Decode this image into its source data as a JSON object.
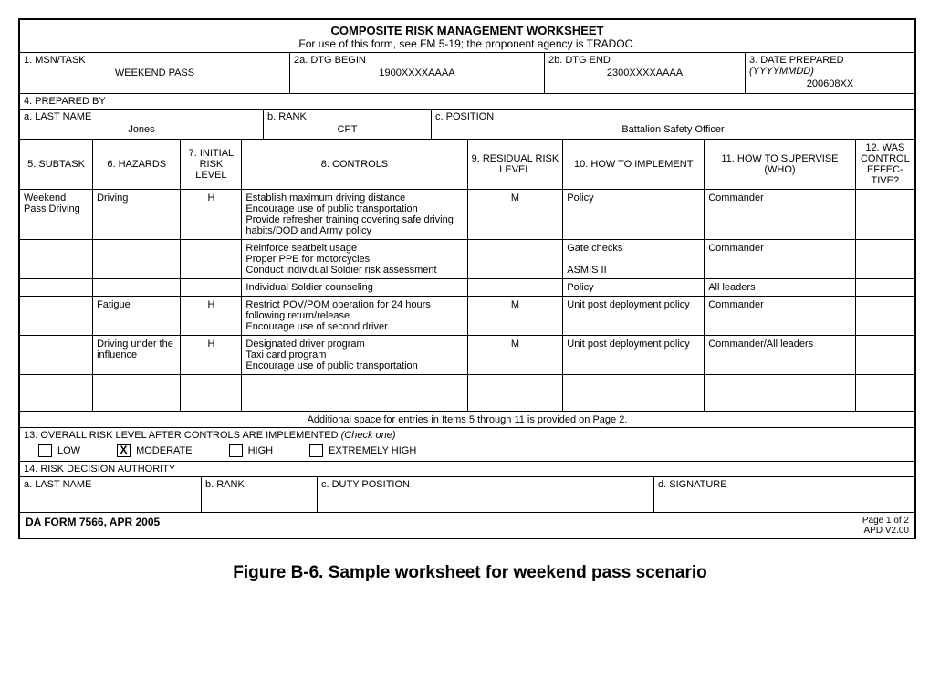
{
  "header": {
    "title": "COMPOSITE RISK MANAGEMENT WORKSHEET",
    "subtitle": "For use of this form, see FM 5-19; the proponent agency is TRADOC."
  },
  "belt1": {
    "msn_label": "1. MSN/TASK",
    "msn_value": "WEEKEND PASS",
    "dtg_begin_label": "2a. DTG BEGIN",
    "dtg_begin_value": "1900XXXXAAAA",
    "dtg_end_label": "2b. DTG END",
    "dtg_end_value": "2300XXXXAAAA",
    "date_label": "3. DATE PREPARED (YYYYMMDD)",
    "date_label_prefix": "3. DATE PREPARED ",
    "date_label_italic": "(YYYYMMDD)",
    "date_value": "200608XX"
  },
  "prepared_by": "4. PREPARED BY",
  "belt2": {
    "ln_label": "a. LAST NAME",
    "ln_value": "Jones",
    "rank_label": "b. RANK",
    "rank_value": "CPT",
    "pos_label": "c. POSITION",
    "pos_value": "Battalion Safety Officer"
  },
  "columns": {
    "subtask": "5. SUBTASK",
    "hazards": "6. HAZARDS",
    "irl": "7. INITIAL RISK LEVEL",
    "controls": "8. CONTROLS",
    "rrl": "9. RESIDUAL RISK LEVEL",
    "implement": "10. HOW TO IMPLEMENT",
    "supervise": "11. HOW TO SUPERVISE (WHO)",
    "effective": "12. WAS CONTROL EFFEC-TIVE?"
  },
  "rows": [
    {
      "subtask": "Weekend Pass Driving",
      "hazard": "Driving",
      "irl": "H",
      "controls": "Establish maximum driving distance\nEncourage use of public transportation\nProvide refresher training covering safe driving habits/DOD and Army policy",
      "rrl": "M",
      "implement": "Policy",
      "supervise": "Commander",
      "effective": ""
    },
    {
      "subtask": "",
      "hazard": "",
      "irl": "",
      "controls": "Reinforce seatbelt usage\nProper PPE for motorcycles\nConduct individual Soldier risk assessment",
      "rrl": "",
      "implement": "Gate checks\n\nASMIS II",
      "supervise": "Commander",
      "effective": ""
    },
    {
      "subtask": "",
      "hazard": "",
      "irl": "",
      "controls": "Individual Soldier counseling",
      "rrl": "",
      "implement": "Policy",
      "supervise": "All leaders",
      "effective": ""
    },
    {
      "subtask": "",
      "hazard": "Fatigue",
      "irl": "H",
      "controls": "Restrict POV/POM operation for 24 hours following return/release\nEncourage use of second driver",
      "rrl": "M",
      "implement": "Unit post deployment policy",
      "supervise": "Commander",
      "effective": ""
    },
    {
      "subtask": "",
      "hazard": "Driving under the influence",
      "irl": "H",
      "controls": "Designated driver program\nTaxi card program\nEncourage use of public transportation",
      "rrl": "M",
      "implement": "Unit post deployment policy",
      "supervise": "Commander/All leaders",
      "effective": ""
    },
    {
      "subtask": "",
      "hazard": "",
      "irl": "",
      "controls": "",
      "rrl": "",
      "implement": "",
      "supervise": "",
      "effective": ""
    }
  ],
  "additional_note": "Additional space for entries in Items 5 through 11 is provided on Page 2.",
  "risk": {
    "heading": "13. OVERALL RISK LEVEL AFTER CONTROLS ARE IMPLEMENTED ",
    "heading_italic": "(Check one)",
    "options": [
      {
        "label": "LOW",
        "checked": false
      },
      {
        "label": "MODERATE",
        "checked": true
      },
      {
        "label": "HIGH",
        "checked": false
      },
      {
        "label": "EXTREMELY HIGH",
        "checked": false
      }
    ]
  },
  "authority": {
    "heading": "14. RISK DECISION AUTHORITY",
    "ln": "a. LAST NAME",
    "rank": "b. RANK",
    "duty": "c. DUTY POSITION",
    "sig": "d. SIGNATURE"
  },
  "form_footer": {
    "left": "DA FORM 7566, APR 2005",
    "right_top": "Page 1 of 2",
    "right_bot": "APD V2.00"
  },
  "caption": "Figure B-6. Sample worksheet for weekend pass scenario"
}
